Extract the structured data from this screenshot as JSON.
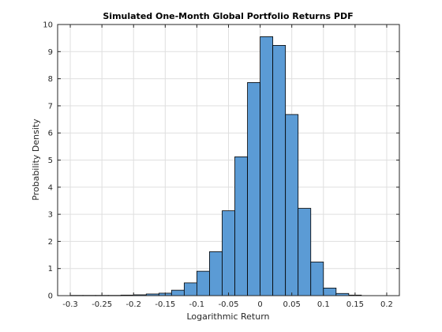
{
  "chart_data": {
    "type": "bar",
    "title": "Simulated One-Month Global Portfolio Returns PDF",
    "xlabel": "Logarithmic Return",
    "ylabel": "Probability Density",
    "xlim": [
      -0.32,
      0.22
    ],
    "ylim": [
      0,
      10
    ],
    "grid": true,
    "xticks": [
      -0.3,
      -0.25,
      -0.2,
      -0.15,
      -0.1,
      -0.05,
      0,
      0.05,
      0.1,
      0.15,
      0.2
    ],
    "xtick_labels": [
      "-0.3",
      "-0.25",
      "-0.2",
      "-0.15",
      "-0.1",
      "-0.05",
      "0",
      "0.05",
      "0.1",
      "0.15",
      "0.2"
    ],
    "yticks": [
      0,
      1,
      2,
      3,
      4,
      5,
      6,
      7,
      8,
      9,
      10
    ],
    "ytick_labels": [
      "0",
      "1",
      "2",
      "3",
      "4",
      "5",
      "6",
      "7",
      "8",
      "9",
      "10"
    ],
    "bin_width": 0.02,
    "bin_edges": [
      -0.3,
      -0.28,
      -0.26,
      -0.24,
      -0.22,
      -0.2,
      -0.18,
      -0.16,
      -0.14,
      -0.12,
      -0.1,
      -0.08,
      -0.06,
      -0.04,
      -0.02,
      0.0,
      0.02,
      0.04,
      0.06,
      0.08,
      0.1,
      0.12,
      0.14,
      0.16
    ],
    "values": [
      0.01,
      0.01,
      0.01,
      0.01,
      0.02,
      0.03,
      0.06,
      0.09,
      0.2,
      0.47,
      0.9,
      1.62,
      3.13,
      5.12,
      7.86,
      9.55,
      9.23,
      6.68,
      3.22,
      1.24,
      0.28,
      0.08,
      0.02
    ],
    "bar_color": "#5b9bd5",
    "edge_color": "#000000"
  }
}
